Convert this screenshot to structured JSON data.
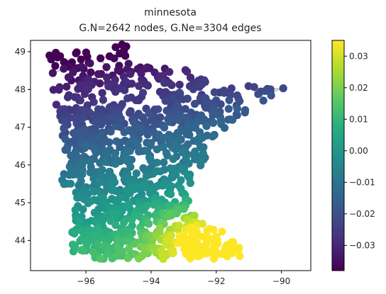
{
  "chart_data": {
    "type": "scatter",
    "title_line1": "minnesota",
    "title_line2": "G.N=2642 nodes, G.Ne=3304 edges",
    "xlabel": "",
    "ylabel": "",
    "xlim": [
      -97.7,
      -89.1
    ],
    "ylim": [
      43.2,
      49.3
    ],
    "x_ticks": [
      -96,
      -94,
      -92,
      -90
    ],
    "x_tick_labels": [
      "−96",
      "−94",
      "−92",
      "−90"
    ],
    "y_ticks": [
      44,
      45,
      46,
      47,
      48,
      49
    ],
    "y_tick_labels": [
      "44",
      "45",
      "46",
      "47",
      "48",
      "49"
    ],
    "colorbar": {
      "vmin": -0.038,
      "vmax": 0.035,
      "ticks": [
        0.03,
        0.02,
        0.01,
        0.0,
        -0.01,
        -0.02,
        -0.03
      ],
      "tick_labels": [
        "0.03",
        "0.02",
        "0.01",
        "0.00",
        "−0.01",
        "−0.02",
        "−0.03"
      ],
      "colormap": "viridis"
    },
    "node_color_hex_low": "#440154",
    "node_color_hex_high": "#fde725",
    "edge_color": "#808080",
    "grid": false,
    "outline": [
      [
        -97.2,
        49.0
      ],
      [
        -95.2,
        49.0
      ],
      [
        -95.15,
        49.38
      ],
      [
        -94.8,
        49.3
      ],
      [
        -94.6,
        48.72
      ],
      [
        -93.8,
        48.55
      ],
      [
        -93.0,
        48.62
      ],
      [
        -92.3,
        48.3
      ],
      [
        -91.4,
        48.05
      ],
      [
        -90.8,
        48.2
      ],
      [
        -90.0,
        48.1
      ],
      [
        -89.5,
        48.0
      ],
      [
        -89.8,
        47.95
      ],
      [
        -90.6,
        47.6
      ],
      [
        -91.5,
        47.1
      ],
      [
        -92.1,
        46.75
      ],
      [
        -92.3,
        46.7
      ],
      [
        -92.3,
        46.2
      ],
      [
        -92.8,
        45.6
      ],
      [
        -92.7,
        45.1
      ],
      [
        -92.8,
        44.75
      ],
      [
        -91.9,
        44.3
      ],
      [
        -91.3,
        43.85
      ],
      [
        -91.25,
        43.5
      ],
      [
        -96.45,
        43.5
      ],
      [
        -96.45,
        45.3
      ],
      [
        -96.85,
        45.6
      ],
      [
        -96.55,
        46.0
      ],
      [
        -96.75,
        46.9
      ],
      [
        -97.0,
        47.9
      ],
      [
        -97.2,
        49.0
      ]
    ],
    "num_nodes_rendered": 1150,
    "marker_size_px": 5.6
  }
}
